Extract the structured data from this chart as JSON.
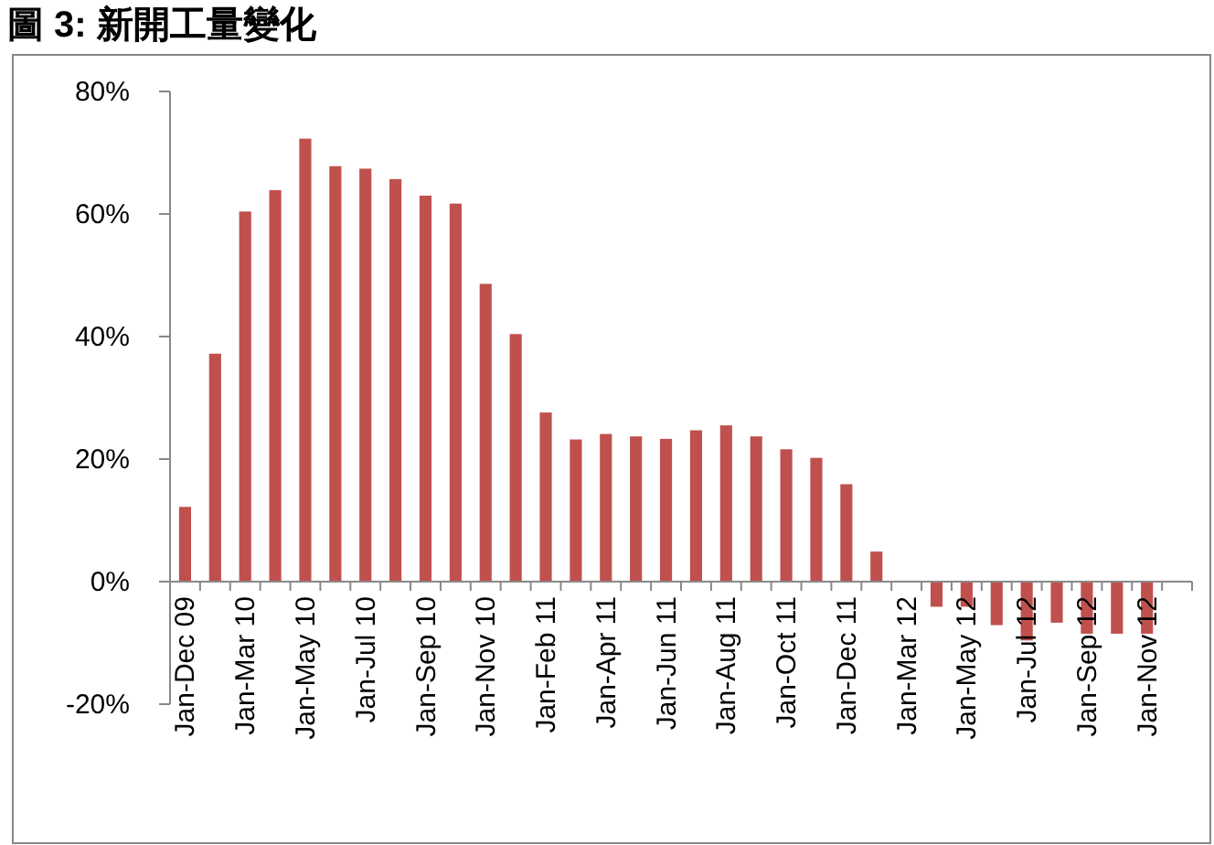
{
  "chart_data": {
    "type": "bar",
    "title": "圖 3: 新開工量變化",
    "categories": [
      "Jan-Dec 09",
      null,
      "Jan-Mar 10",
      null,
      "Jan-May 10",
      null,
      "Jan-Jul 10",
      null,
      "Jan-Sep 10",
      null,
      "Jan-Nov 10",
      null,
      "Jan-Feb 11",
      null,
      "Jan-Apr 11",
      null,
      "Jan-Jun 11",
      null,
      "Jan-Aug 11",
      null,
      "Jan-Oct 11",
      null,
      "Jan-Dec 11",
      null,
      "Jan-Mar 12",
      null,
      "Jan-May 12",
      null,
      "Jan-Jul 12",
      null,
      "Jan-Sep 12",
      null,
      "Jan-Nov 12",
      null
    ],
    "values": [
      12.2,
      37.2,
      60.4,
      63.9,
      72.3,
      67.8,
      67.4,
      65.7,
      63.0,
      61.7,
      48.6,
      40.4,
      27.6,
      23.2,
      24.1,
      23.7,
      23.3,
      24.7,
      25.5,
      23.7,
      21.6,
      20.2,
      15.9,
      4.9,
      null,
      -4.1,
      -4.1,
      -7.1,
      -9.6,
      -6.7,
      -8.5,
      -8.5,
      -8.5,
      null
    ],
    "color": "#c0504d",
    "ylim": [
      -20,
      80
    ],
    "yticks": [
      {
        "value": -20,
        "label": "-20%"
      },
      {
        "value": 0,
        "label": "0%"
      },
      {
        "value": 20,
        "label": "20%"
      },
      {
        "value": 40,
        "label": "40%"
      },
      {
        "value": 60,
        "label": "60%"
      },
      {
        "value": 80,
        "label": "80%"
      }
    ],
    "grid": false
  }
}
